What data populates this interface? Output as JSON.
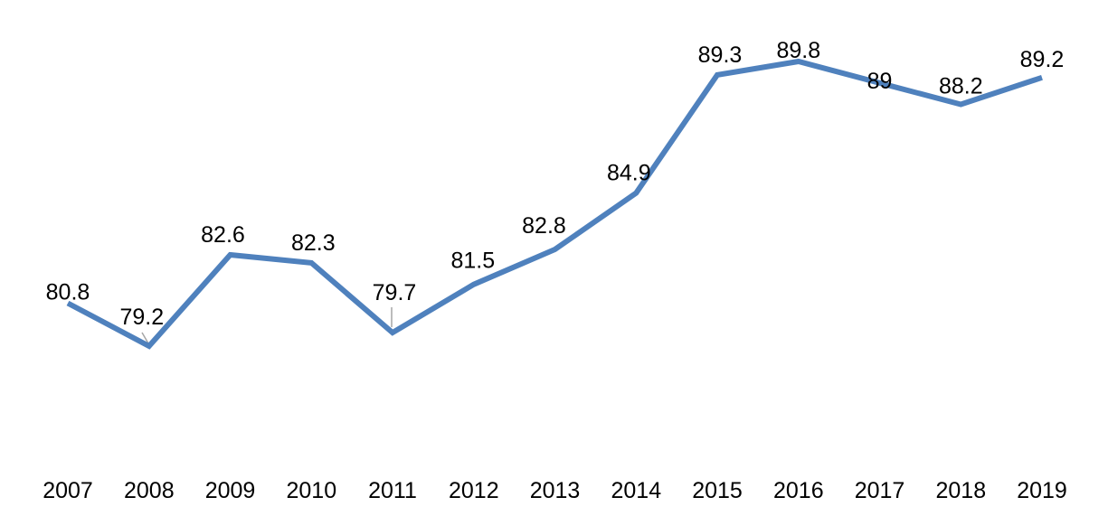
{
  "chart_data": {
    "type": "line",
    "title": "",
    "xlabel": "",
    "ylabel": "",
    "categories": [
      "2007",
      "2008",
      "2009",
      "2010",
      "2011",
      "2012",
      "2013",
      "2014",
      "2015",
      "2016",
      "2017",
      "2018",
      "2019"
    ],
    "series": [
      {
        "values": [
          80.8,
          79.2,
          82.6,
          82.3,
          79.7,
          81.5,
          82.8,
          84.9,
          89.3,
          89.8,
          89,
          88.2,
          89.2
        ],
        "labels": [
          "80.8",
          "79.2",
          "82.6",
          "82.3",
          "79.7",
          "81.5",
          "82.8",
          "84.9",
          "89.3",
          "89.8",
          "89",
          "88.2",
          "89.2"
        ],
        "color": "#4F81BD"
      }
    ],
    "leader_line_color": "#A6A6A6",
    "grid": false,
    "legend": "none"
  }
}
